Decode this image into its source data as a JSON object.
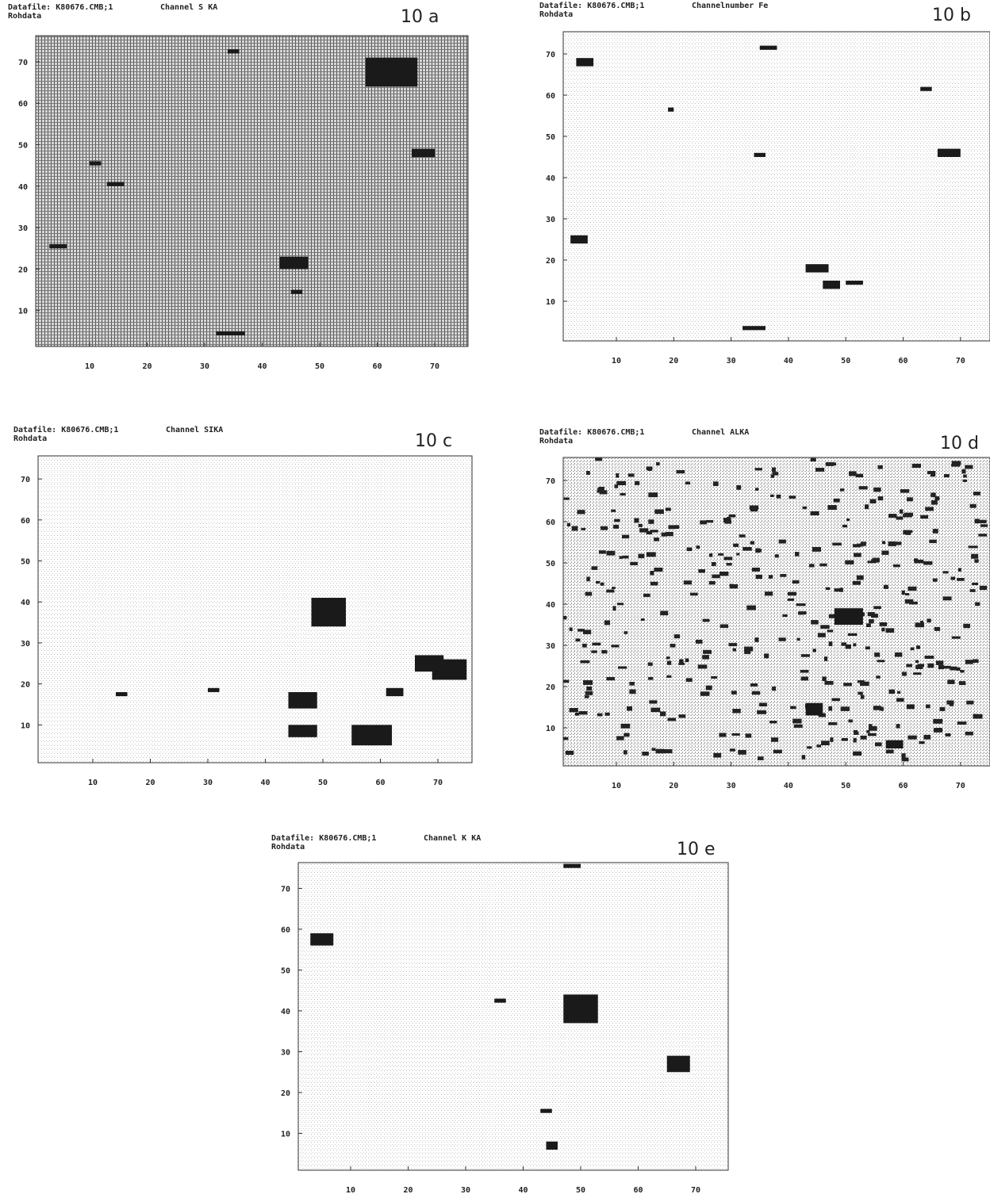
{
  "panels": [
    {
      "datafile": "Datafile: K80676.CMB;1",
      "channel": "Channel S KA",
      "subtitle": "Rohdata",
      "label": "10 a",
      "xticks": [
        10,
        20,
        30,
        40,
        50,
        60,
        70
      ],
      "yticks": [
        10,
        20,
        30,
        40,
        50,
        60,
        70
      ]
    },
    {
      "datafile": "Datafile: K80676.CMB;1",
      "channel": "Channelnumber Fe",
      "subtitle": "Rohdata",
      "label": "10 b",
      "xticks": [
        10,
        20,
        30,
        40,
        50,
        60,
        70
      ],
      "yticks": [
        10,
        20,
        30,
        40,
        50,
        60,
        70
      ]
    },
    {
      "datafile": "Datafile: K80676.CMB;1",
      "channel": "Channel SIKA",
      "subtitle": "Rohdata",
      "label": "10 c",
      "xticks": [
        10,
        20,
        30,
        40,
        50,
        60,
        70
      ],
      "yticks": [
        10,
        20,
        30,
        40,
        50,
        60,
        70
      ]
    },
    {
      "datafile": "Datafile: K80676.CMB;1",
      "channel": "Channel ALKA",
      "subtitle": "Rohdata",
      "label": "10 d",
      "xticks": [
        10,
        20,
        30,
        40,
        50,
        60,
        70
      ],
      "yticks": [
        10,
        20,
        30,
        40,
        50,
        60,
        70
      ]
    },
    {
      "datafile": "Datafile: K80676.CMB;1",
      "channel": "Channel K KA",
      "subtitle": "Rohdata",
      "label": "10 e",
      "xticks": [
        10,
        20,
        30,
        40,
        50,
        60,
        70
      ],
      "yticks": [
        10,
        20,
        30,
        40,
        50,
        60,
        70
      ]
    }
  ]
}
